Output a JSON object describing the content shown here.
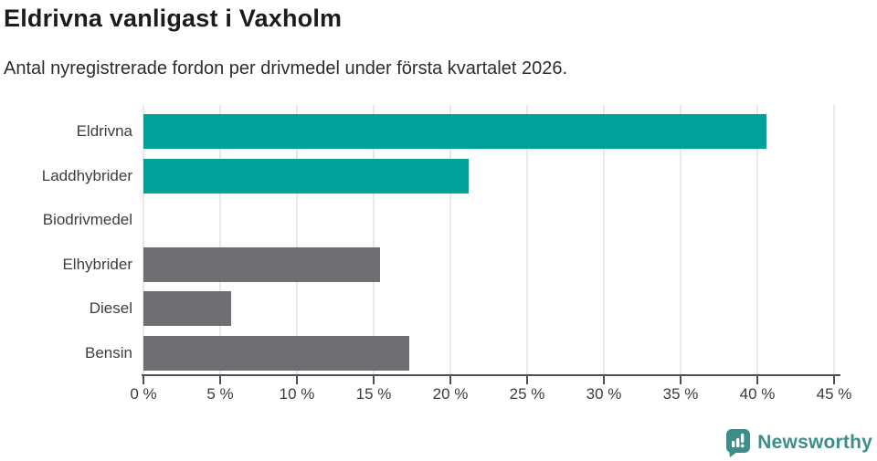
{
  "chart_data": {
    "type": "bar",
    "orientation": "horizontal",
    "title": "Eldrivna vanligast i Vaxholm",
    "subtitle": "Antal nyregistrerade fordon per drivmedel under första kvartalet 2026.",
    "categories": [
      "Eldrivna",
      "Laddhybrider",
      "Biodrivmedel",
      "Elhybrider",
      "Diesel",
      "Bensin"
    ],
    "values": [
      40.6,
      21.2,
      0,
      15.4,
      5.7,
      17.3
    ],
    "unit": "%",
    "bar_colors": [
      "#00A29A",
      "#00A29A",
      "#6F6E73",
      "#6F6E73",
      "#6F6E73",
      "#6F6E73"
    ],
    "xlim": [
      0,
      45
    ],
    "x_ticks": [
      0,
      5,
      10,
      15,
      20,
      25,
      30,
      35,
      40,
      45
    ],
    "x_tick_suffix": " %",
    "grid": true,
    "legend": false,
    "data_labels": false
  },
  "colors": {
    "accent_teal": "#00A29A",
    "muted_gray_bar": "#6F6E73",
    "gridline": "#E8E8E8",
    "axis": "#514F55",
    "title_text": "#1C1C1C",
    "body_text": "#2D2D2D",
    "logo_teal": "#3E8D88"
  },
  "footer": {
    "brand": "Newsworthy"
  }
}
